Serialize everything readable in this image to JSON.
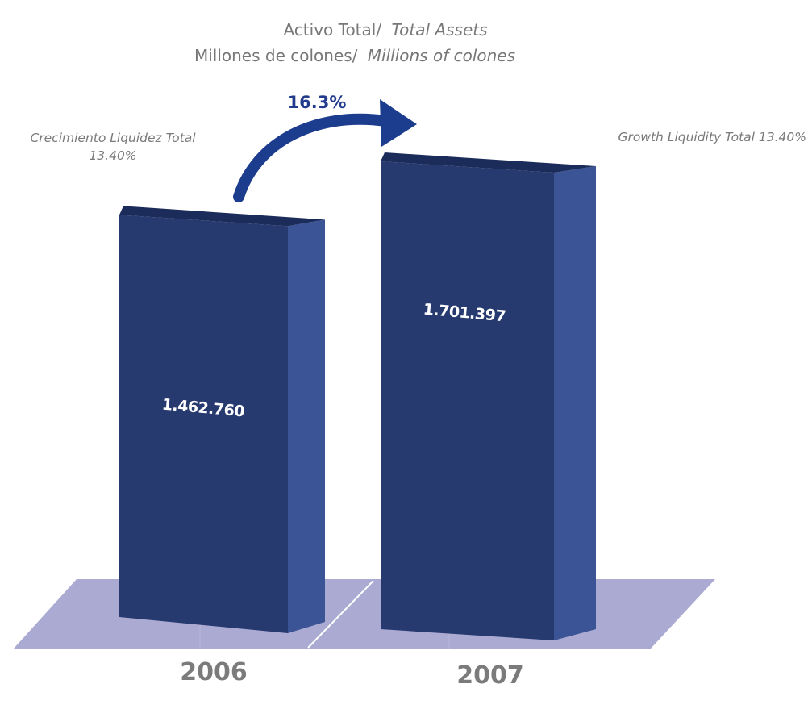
{
  "chart_data": {
    "type": "bar",
    "title": "Activo Total/",
    "title_en": "Total Assets",
    "subtitle": "Millones de colones/",
    "subtitle_en": "Millions of colones",
    "categories": [
      "2006",
      "2007"
    ],
    "values": [
      1462760,
      1701397
    ],
    "value_labels": [
      "1.462.760",
      "1.701.397"
    ],
    "growth_label": "16.3%",
    "annotation_left_line1": "Crecimiento Liquidez Total",
    "annotation_left_line2": "13.40%",
    "annotation_right": "Growth Liquidity Total 13.40%",
    "colors": {
      "bar_front": "#263a70",
      "bar_side": "#3b5496",
      "bar_top": "#1c2c5a",
      "floor": "#aaaad2",
      "arrow": "#1c3c8e"
    }
  }
}
